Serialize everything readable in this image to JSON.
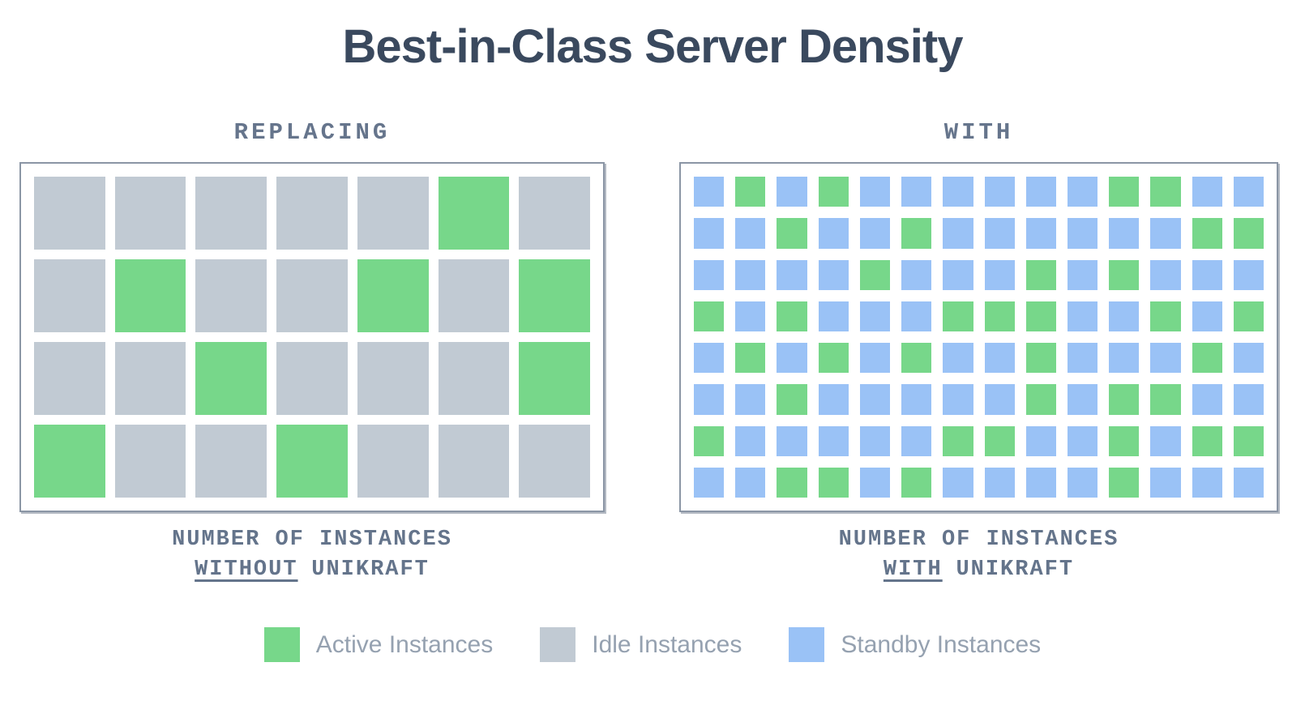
{
  "title": "Best-in-Class Server Density",
  "colors": {
    "active": "#77D78A",
    "idle": "#C1CAD3",
    "standby": "#9AC2F6",
    "title_text": "#3A495E",
    "heading_text": "#66758C",
    "caption_text": "#64748B",
    "legend_text": "#95A1B0",
    "grid_border": "#8B96A5"
  },
  "panels": [
    {
      "id": "without-unikraft",
      "heading": "REPLACING",
      "caption_line1": "NUMBER OF INSTANCES",
      "caption_underlined_word": "WITHOUT",
      "caption_rest": "UNIKRAFT",
      "grid": {
        "columns": 7,
        "rows": 4,
        "base_cell": "idle",
        "cells": [
          ".....G.",
          ".G..G.G",
          "..G...G",
          "G..G..."
        ],
        "counts": {
          "active": 8,
          "idle": 20,
          "total": 28
        }
      }
    },
    {
      "id": "with-unikraft",
      "heading": "WITH",
      "caption_line1": "NUMBER OF INSTANCES",
      "caption_underlined_word": "WITH",
      "caption_rest": "UNIKRAFT",
      "grid": {
        "columns": 14,
        "rows": 8,
        "base_cell": "standby",
        "cells": [
          ".G.G......GG..",
          "..G..G......GG",
          "....G...G.G...",
          "G.G...GGG..G.G",
          ".G.G.G..G...G.",
          "..G.....G.GG..",
          "G.....GG..G.GG",
          "..GG.G....G..."
        ],
        "counts": {
          "active": 37,
          "standby": 75,
          "total": 112
        }
      }
    }
  ],
  "legend": [
    {
      "label": "Active Instances",
      "color_key": "active"
    },
    {
      "label": "Idle Instances",
      "color_key": "idle"
    },
    {
      "label": "Standby Instances",
      "color_key": "standby"
    }
  ]
}
